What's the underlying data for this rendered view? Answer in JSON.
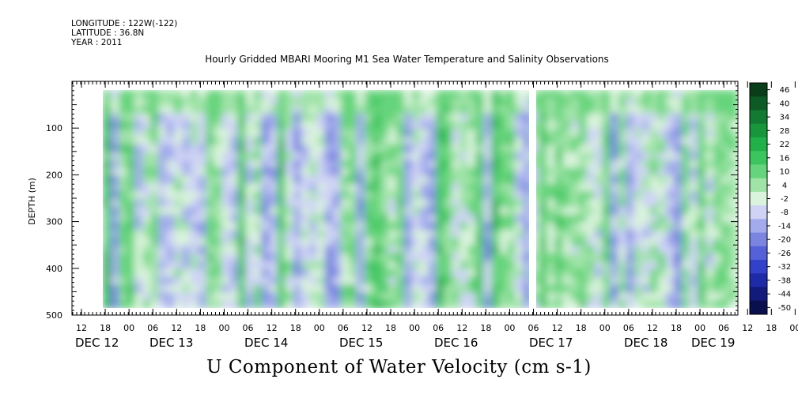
{
  "header": {
    "longitude": "LONGITUDE : 122W(-122)",
    "latitude": "LATITUDE : 36.8N",
    "year": "YEAR : 2011"
  },
  "chart_data": {
    "type": "heatmap",
    "title": "Hourly Gridded MBARI Mooring M1 Sea Water Temperature and Salinity Observations",
    "bottom_title": "U Component of Water Velocity (cm s-1)",
    "ylabel": "DEPTH (m)",
    "ylim": [
      0,
      500
    ],
    "y_ticks": [
      100,
      200,
      300,
      400,
      500
    ],
    "y_reversed": true,
    "x_hour_ticks": [
      "12",
      "18",
      "00",
      "06",
      "12",
      "18",
      "00",
      "06",
      "12",
      "18",
      "00",
      "06",
      "12",
      "18",
      "00",
      "06",
      "12",
      "18",
      "00",
      "06",
      "12",
      "18",
      "00",
      "06",
      "12",
      "18",
      "00",
      "06",
      "12",
      "18",
      "00",
      "06"
    ],
    "x_day_labels": [
      "DEC 12",
      "DEC 13",
      "DEC 14",
      "DEC 15",
      "DEC 16",
      "DEC 17",
      "DEC 18",
      "DEC 19"
    ],
    "colorbar": {
      "levels": [
        "46",
        "40",
        "34",
        "28",
        "22",
        "16",
        "10",
        "4",
        "-2",
        "-8",
        "-14",
        "-20",
        "-26",
        "-32",
        "-38",
        "-44",
        "-50"
      ],
      "colors": [
        "#0a3d1a",
        "#0e5a26",
        "#127a32",
        "#18963c",
        "#22b04a",
        "#3cc45e",
        "#66d47c",
        "#9fe3a7",
        "#d9f3dc",
        "#cfd4f5",
        "#a3abec",
        "#7b85e0",
        "#5561d6",
        "#3340c8",
        "#1e2aa6",
        "#121a7a",
        "#0a0f4e"
      ]
    }
  }
}
